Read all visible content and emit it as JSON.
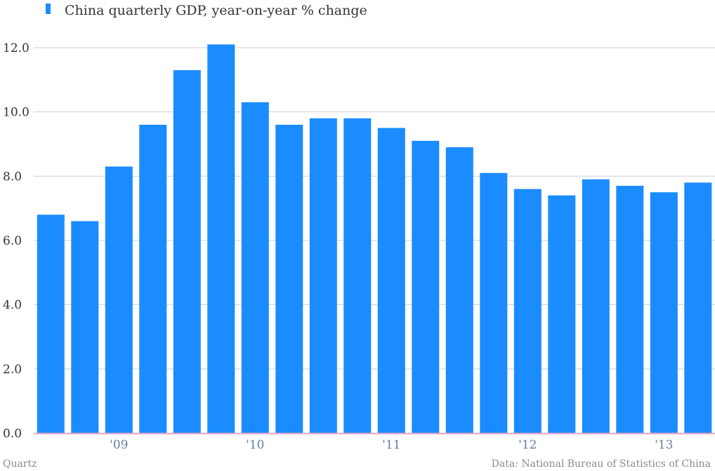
{
  "chart_data": {
    "type": "bar",
    "title": "",
    "xlabel": "",
    "ylabel": "",
    "series": [
      {
        "name": "China quarterly GDP, year-on-year % change",
        "color": "#1a8cff",
        "values": [
          6.8,
          6.6,
          8.3,
          9.6,
          11.3,
          12.1,
          10.3,
          9.6,
          9.8,
          9.8,
          9.5,
          9.1,
          8.9,
          8.1,
          7.6,
          7.4,
          7.9,
          7.7,
          7.5,
          7.8
        ]
      }
    ],
    "ylim": [
      0,
      12
    ],
    "yticks": [
      "0.0",
      "2.0",
      "4.0",
      "6.0",
      "8.0",
      "10.0",
      "12.0"
    ],
    "ytick_values": [
      0,
      2,
      4,
      6,
      8,
      10,
      12
    ],
    "xticks": [
      {
        "label": "'09",
        "position": 2.5
      },
      {
        "label": "'10",
        "position": 6.5
      },
      {
        "label": "'11",
        "position": 10.5
      },
      {
        "label": "'12",
        "position": 14.5
      },
      {
        "label": "'13",
        "position": 18.5
      }
    ],
    "grid": true,
    "legend_position": "top-left",
    "gridline_color": "#cfcfd8",
    "baseline_color": "#e7a3c3"
  },
  "footer": {
    "left": "Quartz",
    "right": "Data: National Bureau of Statistics of China"
  }
}
